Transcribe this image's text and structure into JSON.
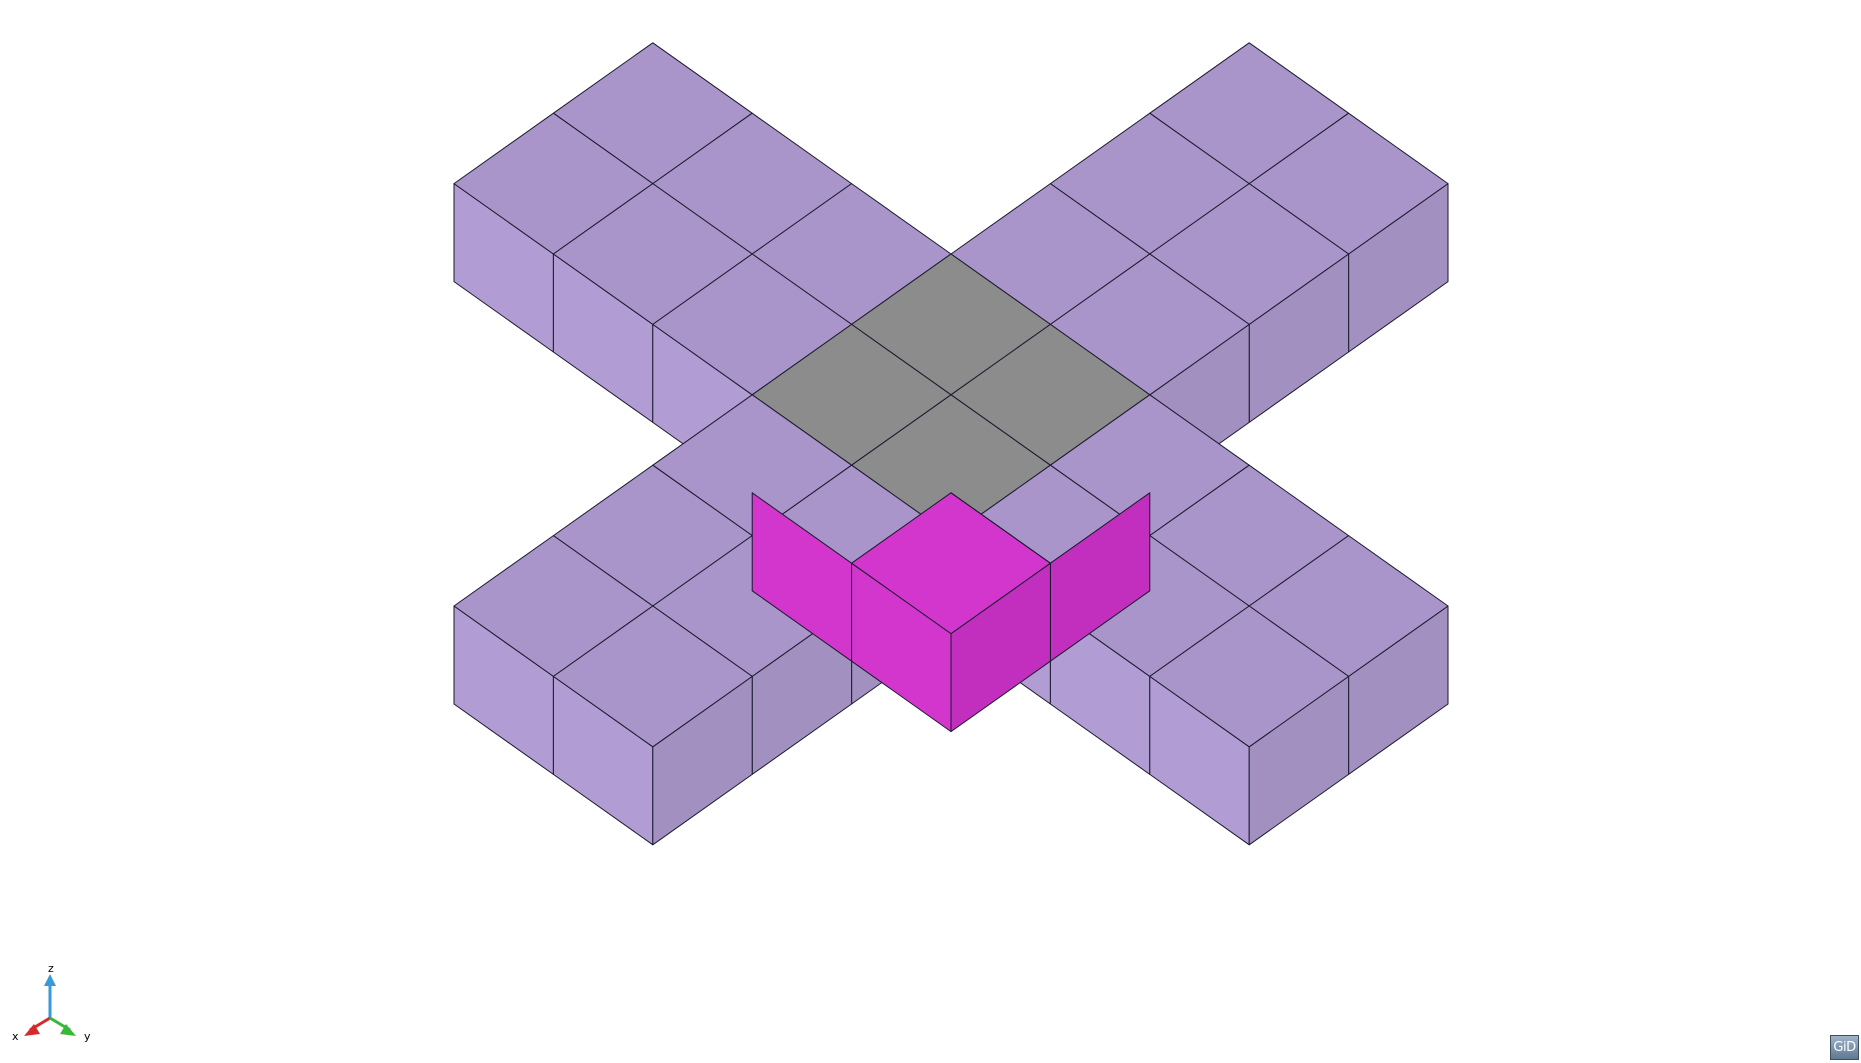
{
  "viewport": {
    "background": "#ffffff",
    "edge_color": "#1a1a2e"
  },
  "model": {
    "description_icon": "cross-shaped-mesh",
    "colors": {
      "arm_top": "#a995c9",
      "arm_side_light": "#b19dd3",
      "arm_side_dark": "#a190c0",
      "center_top": "#8c8c8c",
      "magenta_light": "#d236cd",
      "magenta_dark": "#c22fbe"
    }
  },
  "axes": {
    "x_label": "x",
    "y_label": "y",
    "z_label": "z",
    "x_color": "#d42a2a",
    "y_color": "#38b838",
    "z_color": "#3a9ad9"
  },
  "badge": {
    "label": "GiD"
  }
}
